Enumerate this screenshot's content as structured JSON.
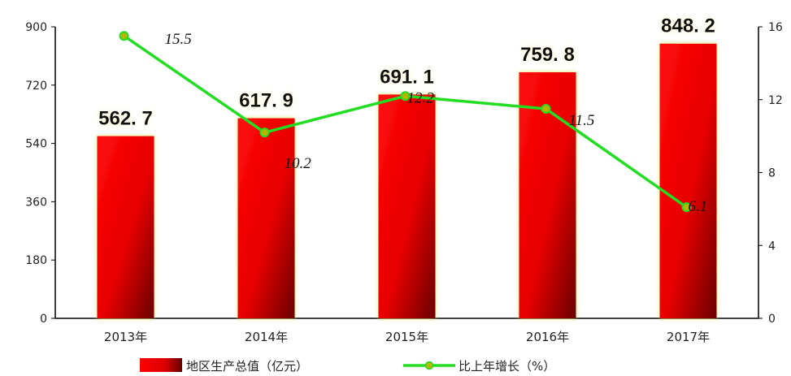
{
  "chart_data": {
    "type": "bar",
    "categories": [
      "2013年",
      "2014年",
      "2015年",
      "2016年",
      "2017年"
    ],
    "series": [
      {
        "name": "地区生产总值（亿元）",
        "type": "bar",
        "axis": "left",
        "values": [
          562.7,
          617.9,
          691.1,
          759.8,
          848.2
        ],
        "value_labels": [
          "562. 7",
          "617. 9",
          "691. 1",
          "759. 8",
          "848. 2"
        ],
        "color": "#ff0000"
      },
      {
        "name": "比上年增长（%）",
        "type": "line",
        "axis": "right",
        "values": [
          15.5,
          10.2,
          12.2,
          11.5,
          6.1
        ],
        "value_labels": [
          "15.5",
          "10.2",
          "12.2",
          "11.5",
          "6.1"
        ],
        "color": "#22dd22",
        "marker_color": "#b5b800"
      }
    ],
    "y_left": {
      "ylim": [
        0,
        900
      ],
      "ticks": [
        "0",
        "180",
        "360",
        "540",
        "720",
        "900"
      ]
    },
    "y_right": {
      "ylim": [
        0,
        16
      ],
      "ticks": [
        "0",
        "4",
        "8",
        "12",
        "16"
      ]
    },
    "grid": false,
    "legend_position": "bottom"
  }
}
